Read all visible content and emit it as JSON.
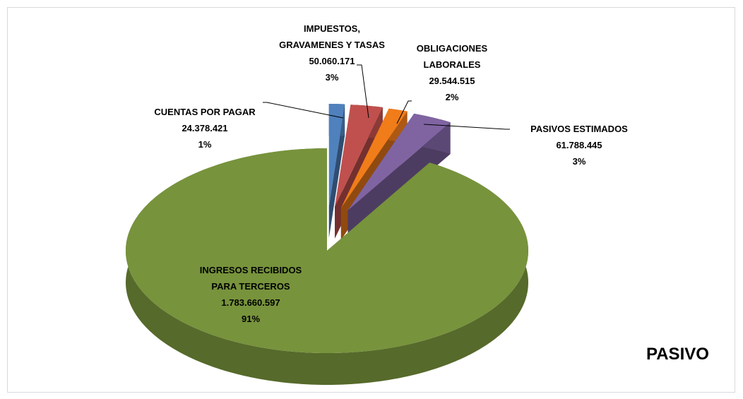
{
  "chart_data": {
    "type": "pie3d",
    "title": "PASIVO",
    "categories": [
      "CUENTAS POR PAGAR",
      "IMPUESTOS, GRAVAMENES Y TASAS",
      "OBLIGACIONES LABORALES",
      "PASIVOS ESTIMADOS",
      "INGRESOS RECIBIDOS PARA TERCEROS"
    ],
    "values": [
      24378421,
      50060171,
      29544515,
      61788445,
      1783660597
    ],
    "value_labels": [
      "24.378.421",
      "50.060.171",
      "29.544.515",
      "61.788.445",
      "1.783.660.597"
    ],
    "percentages": [
      1,
      3,
      2,
      3,
      91
    ],
    "percentage_labels": [
      "1%",
      "3%",
      "2%",
      "3%",
      "91%"
    ],
    "colors": [
      "#4f81bd",
      "#c0504d",
      "#f07c1a",
      "#8064a2",
      "#77933c"
    ]
  }
}
